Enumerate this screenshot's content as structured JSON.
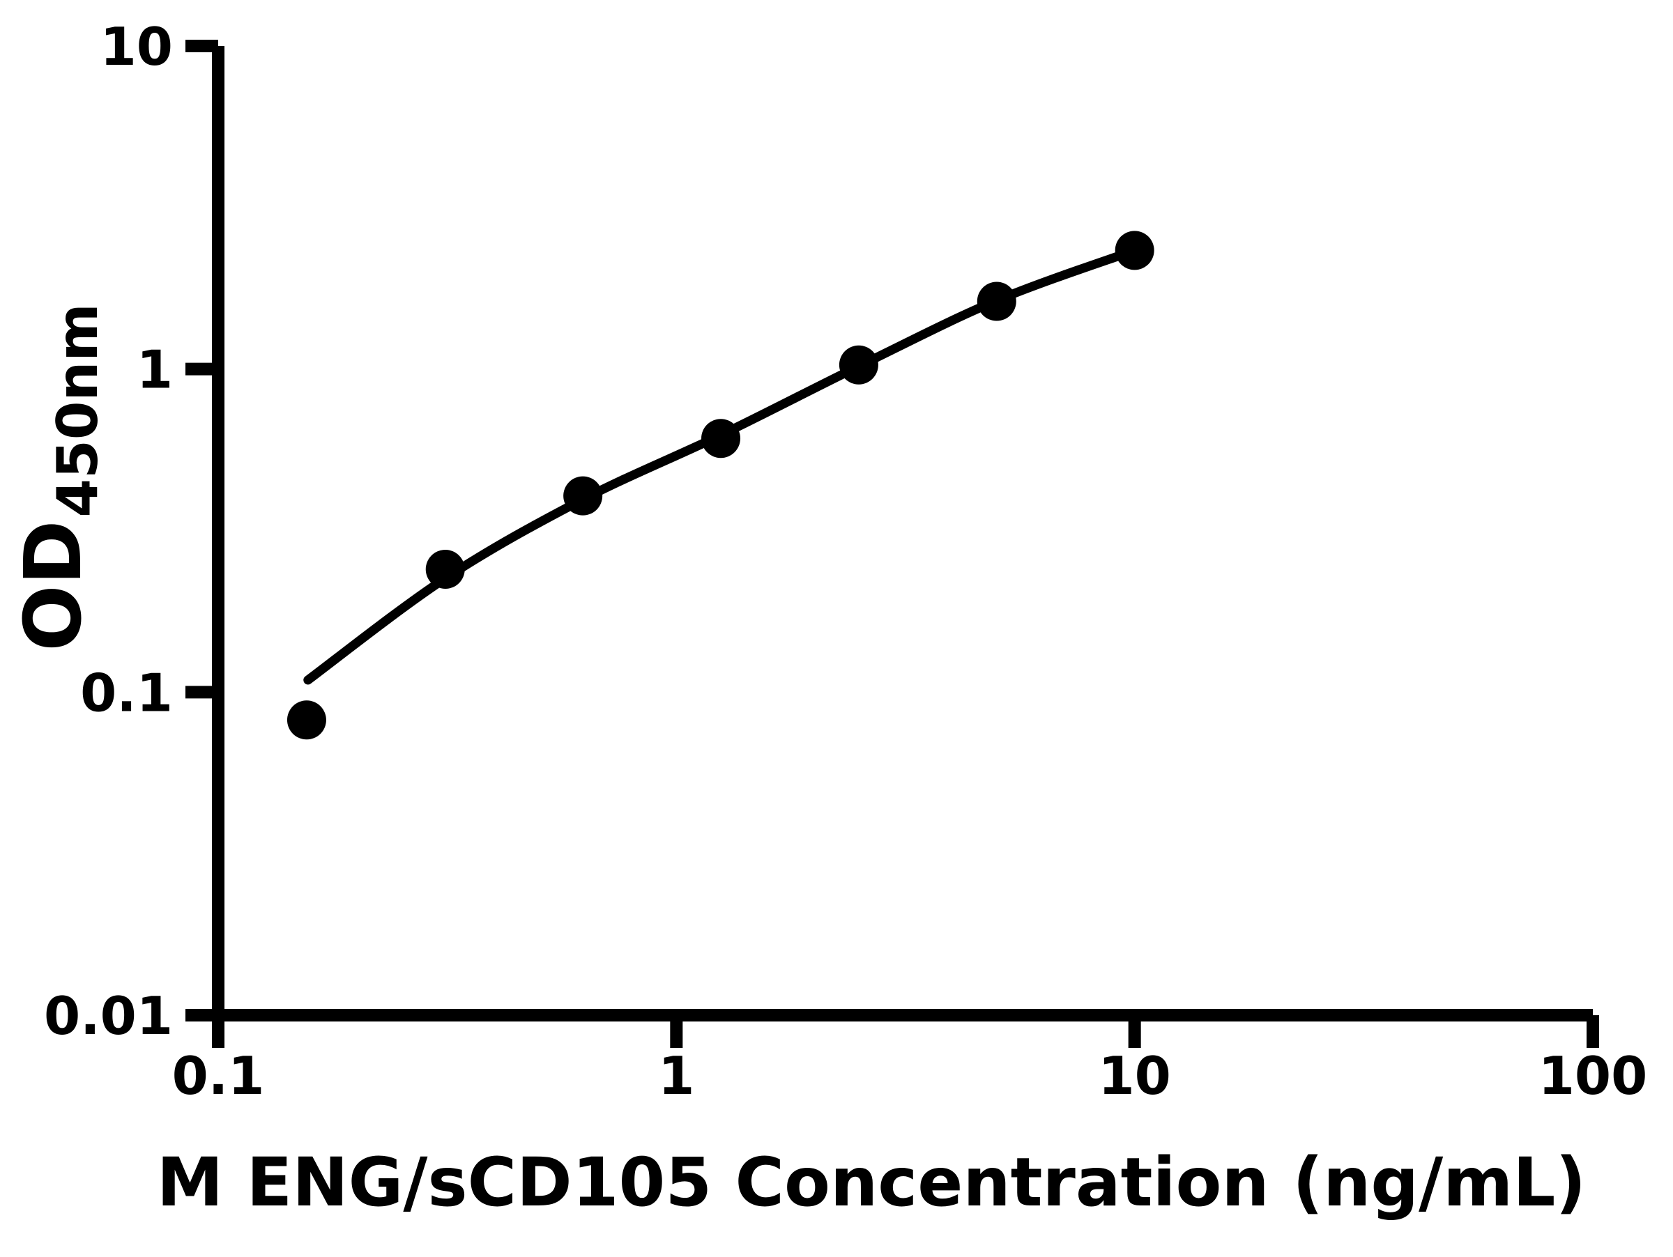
{
  "figure": {
    "background": "#ffffff",
    "foreground": "#000000"
  },
  "chart_data": {
    "type": "scatter",
    "title": "",
    "xlabel": "M ENG/sCD105 Concentration (ng/mL)",
    "ylabel": "OD",
    "ylabel_subscript": "450nm",
    "x_scale": "log",
    "y_scale": "log",
    "xlim": [
      0.1,
      100
    ],
    "ylim": [
      0.01,
      10
    ],
    "x_ticks": [
      {
        "value": 0.1,
        "label": "0.1"
      },
      {
        "value": 1,
        "label": "1"
      },
      {
        "value": 10,
        "label": "10"
      },
      {
        "value": 100,
        "label": "100"
      }
    ],
    "y_ticks": [
      {
        "value": 0.01,
        "label": "0.01"
      },
      {
        "value": 0.1,
        "label": "0.1"
      },
      {
        "value": 1,
        "label": "1"
      },
      {
        "value": 10,
        "label": "10"
      }
    ],
    "grid": false,
    "legend": "none",
    "marker_color": "#000000",
    "line_color": "#000000",
    "series": [
      {
        "name": "standard-points",
        "type": "scatter",
        "points": [
          [
            0.156,
            0.082
          ],
          [
            0.313,
            0.24
          ],
          [
            0.625,
            0.405
          ],
          [
            1.25,
            0.61
          ],
          [
            2.5,
            1.03
          ],
          [
            5,
            1.62
          ],
          [
            10,
            2.33
          ]
        ]
      },
      {
        "name": "fit-curve",
        "type": "line",
        "points": [
          [
            0.157,
            0.109
          ],
          [
            0.313,
            0.225
          ],
          [
            0.625,
            0.395
          ],
          [
            1.25,
            0.625
          ],
          [
            2.5,
            1.02
          ],
          [
            5,
            1.63
          ],
          [
            10,
            2.33
          ]
        ]
      }
    ]
  }
}
